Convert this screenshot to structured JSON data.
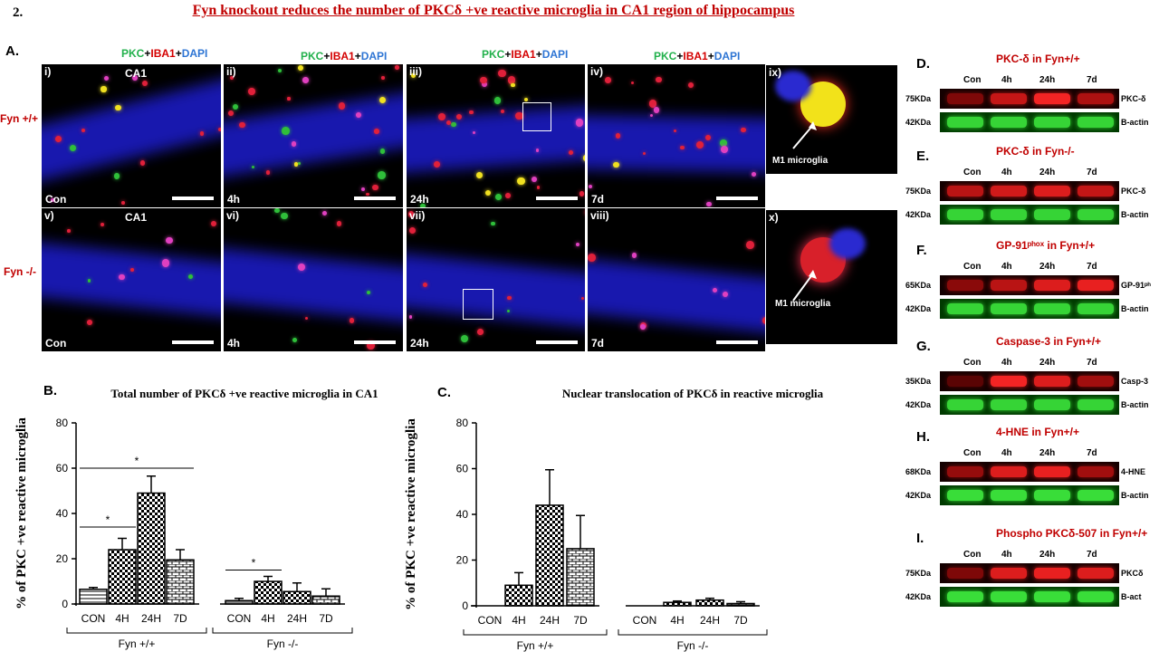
{
  "figure": {
    "number": "2.",
    "title": "Fyn knockout reduces the number of PKCδ +ve reactive microglia in CA1 region of hippocampus",
    "colors": {
      "title": "#c00000",
      "pkc": "#22b14c",
      "iba1": "#d40000",
      "dapi": "#2e75d4"
    }
  },
  "panel_a": {
    "letter": "A.",
    "stain": {
      "pkc": "PKC",
      "plus1": "+",
      "iba1": "IBA1",
      "plus2": "+",
      "dapi": "DAPI"
    },
    "rows": [
      {
        "genotype": "Fyn +/+",
        "images": [
          {
            "roman": "i)",
            "region": "CA1",
            "time": "Con"
          },
          {
            "roman": "ii)",
            "region": "",
            "time": "4h"
          },
          {
            "roman": "iii)",
            "region": "",
            "time": "24h"
          },
          {
            "roman": "iv)",
            "region": "",
            "time": "7d"
          }
        ],
        "inset": {
          "roman": "ix)",
          "label": "M1 microglia"
        }
      },
      {
        "genotype": "Fyn -/-",
        "images": [
          {
            "roman": "v)",
            "region": "CA1",
            "time": "Con"
          },
          {
            "roman": "vi)",
            "region": "",
            "time": "4h"
          },
          {
            "roman": "vii)",
            "region": "",
            "time": "24h"
          },
          {
            "roman": "viii)",
            "region": "",
            "time": "7d"
          }
        ],
        "inset": {
          "roman": "x)",
          "label": "M1 microglia"
        }
      }
    ]
  },
  "blots": [
    {
      "letter": "D.",
      "title": "PKC-δ  in Fyn+/+",
      "lanes": [
        "Con",
        "4h",
        "24h",
        "7d"
      ],
      "bands": [
        {
          "kda": "75KDa",
          "label": "PKC-δ",
          "color": "red",
          "intensity": [
            0.45,
            0.75,
            0.95,
            0.65
          ]
        },
        {
          "kda": "42KDa",
          "label": "B-actin",
          "color": "green",
          "intensity": [
            0.9,
            0.9,
            0.9,
            0.9
          ]
        }
      ]
    },
    {
      "letter": "E.",
      "title": "PKC-δ  in Fyn-/-",
      "lanes": [
        "Con",
        "4h",
        "24h",
        "7d"
      ],
      "bands": [
        {
          "kda": "75KDa",
          "label": "PKC-δ",
          "color": "red",
          "intensity": [
            0.7,
            0.8,
            0.85,
            0.75
          ]
        },
        {
          "kda": "42KDa",
          "label": "B-actin",
          "color": "green",
          "intensity": [
            0.9,
            0.9,
            0.9,
            0.9
          ]
        }
      ]
    },
    {
      "letter": "F.",
      "title": "GP-91ᵖʰᵒˣ in Fyn+/+",
      "lanes": [
        "Con",
        "4h",
        "24h",
        "7d"
      ],
      "bands": [
        {
          "kda": "65KDa",
          "label": "GP-91ᵖʰ",
          "color": "red",
          "intensity": [
            0.5,
            0.7,
            0.85,
            0.9
          ]
        },
        {
          "kda": "42KDa",
          "label": "B-actin",
          "color": "green",
          "intensity": [
            0.9,
            0.9,
            0.9,
            0.9
          ]
        }
      ]
    },
    {
      "letter": "G.",
      "title": "Caspase-3  in Fyn+/+",
      "lanes": [
        "Con",
        "4h",
        "24h",
        "7d"
      ],
      "bands": [
        {
          "kda": "35KDa",
          "label": "Casp-3",
          "color": "red",
          "intensity": [
            0.3,
            0.95,
            0.85,
            0.6
          ]
        },
        {
          "kda": "42KDa",
          "label": "B-actin",
          "color": "green",
          "intensity": [
            0.9,
            0.9,
            0.9,
            0.9
          ]
        }
      ]
    },
    {
      "letter": "H.",
      "title": "4-HNE  in Fyn+/+",
      "lanes": [
        "Con",
        "4h",
        "24h",
        "7d"
      ],
      "bands": [
        {
          "kda": "68KDa",
          "label": "4-HNE",
          "color": "red",
          "intensity": [
            0.55,
            0.85,
            0.9,
            0.6
          ]
        },
        {
          "kda": "42KDa",
          "label": "B-actin",
          "color": "green",
          "intensity": [
            0.95,
            0.95,
            0.95,
            0.95
          ]
        }
      ]
    },
    {
      "letter": "I.",
      "title": "Phospho  PKCδ-507  in Fyn+/+",
      "lanes": [
        "Con",
        "4h",
        "24h",
        "7d"
      ],
      "bands": [
        {
          "kda": "75KDa",
          "label": "PKCδ",
          "color": "red",
          "intensity": [
            0.45,
            0.85,
            0.9,
            0.85
          ]
        },
        {
          "kda": "42KDa",
          "label": "B-act",
          "color": "green",
          "intensity": [
            0.95,
            0.95,
            0.95,
            0.95
          ]
        }
      ]
    }
  ],
  "chart_data": [
    {
      "type": "bar",
      "letter": "B.",
      "title": "Total number  of PKCδ +ve reactive microglia in CA1",
      "ylabel": "% of PKC +ve reactive microglia",
      "ylim": [
        0,
        80
      ],
      "yticks": [
        0,
        20,
        40,
        60,
        80
      ],
      "categories": [
        "CON",
        "4H",
        "24H",
        "7D",
        "CON",
        "4H",
        "24H",
        "7D"
      ],
      "groups": [
        {
          "name": "Fyn +/+",
          "indices": [
            0,
            1,
            2,
            3
          ]
        },
        {
          "name": "Fyn -/-",
          "indices": [
            4,
            5,
            6,
            7
          ]
        }
      ],
      "values": [
        6.5,
        24,
        49,
        19.5,
        1.5,
        10,
        5.5,
        3.5
      ],
      "errors": [
        0.8,
        5,
        7.5,
        4.5,
        1,
        2.2,
        3.8,
        3.2
      ],
      "significance": [
        {
          "from": 0,
          "to": 1,
          "y": 34,
          "label": "*"
        },
        {
          "from": 0,
          "to": 3,
          "y": 60,
          "label": "*"
        },
        {
          "from": 4,
          "to": 5,
          "y": 15,
          "label": "*"
        }
      ]
    },
    {
      "type": "bar",
      "letter": "C.",
      "title": "Nuclear translocation  of PKCδ  in reactive microglia",
      "ylabel": "% of PKC +ve reactive microglia",
      "ylim": [
        0,
        80
      ],
      "yticks": [
        0,
        20,
        40,
        60,
        80
      ],
      "categories": [
        "CON",
        "4H",
        "24H",
        "7D",
        "CON",
        "4H",
        "24H",
        "7D"
      ],
      "groups": [
        {
          "name": "Fyn +/+",
          "indices": [
            0,
            1,
            2,
            3
          ]
        },
        {
          "name": "Fyn -/-",
          "indices": [
            4,
            5,
            6,
            7
          ]
        }
      ],
      "values": [
        0,
        9,
        44,
        25,
        0,
        1.5,
        2.5,
        1
      ],
      "errors": [
        0,
        5.5,
        15.5,
        14.5,
        0,
        0.6,
        0.8,
        0.8
      ],
      "significance": []
    }
  ]
}
